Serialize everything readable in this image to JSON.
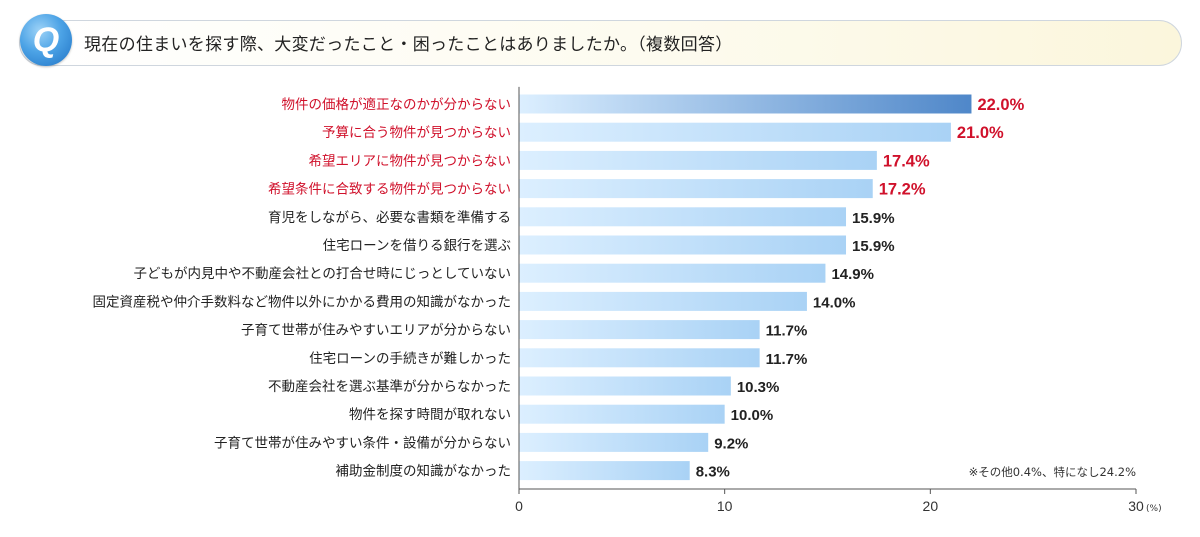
{
  "header": {
    "badge": "Q",
    "question": "現在の住まいを探す際、大変だったこと・困ったことはありましたか。（複数回答）"
  },
  "chart_data": {
    "type": "bar",
    "orientation": "horizontal",
    "categories": [
      "物件の価格が適正なのかが分からない",
      "予算に合う物件が見つからない",
      "希望エリアに物件が見つからない",
      "希望条件に合致する物件が見つからない",
      "育児をしながら、必要な書類を準備する",
      "住宅ローンを借りる銀行を選ぶ",
      "子どもが内見中や不動産会社との打合せ時にじっとしていない",
      "固定資産税や仲介手数料など物件以外にかかる費用の知識がなかった",
      "子育て世帯が住みやすいエリアが分からない",
      "住宅ローンの手続きが難しかった",
      "不動産会社を選ぶ基準が分からなかった",
      "物件を探す時間が取れない",
      "子育て世帯が住みやすい条件・設備が分からない",
      "補助金制度の知識がなかった"
    ],
    "values": [
      22.0,
      21.0,
      17.4,
      17.2,
      15.9,
      15.9,
      14.9,
      14.0,
      11.7,
      11.7,
      10.3,
      10.0,
      9.2,
      8.3
    ],
    "value_labels": [
      "22.0%",
      "21.0%",
      "17.4%",
      "17.2%",
      "15.9%",
      "15.9%",
      "14.9%",
      "14.0%",
      "11.7%",
      "11.7%",
      "10.3%",
      "10.0%",
      "9.2%",
      "8.3%"
    ],
    "highlight_count": 4,
    "xlim": [
      0,
      30
    ],
    "xticks": [
      0,
      10,
      20,
      30
    ],
    "xtick_labels": [
      "0",
      "10",
      "20",
      "30"
    ],
    "x_unit": "(%)",
    "note": "※その他0.4%、特になし24.2%",
    "grid": false,
    "colors": {
      "highlight_text": "#d0112b",
      "normal_text": "#222222",
      "bar_light": "#dcefff",
      "bar_mid": "#a9d2f5",
      "bar_top": "#4f87c9",
      "axis": "#555555"
    }
  }
}
